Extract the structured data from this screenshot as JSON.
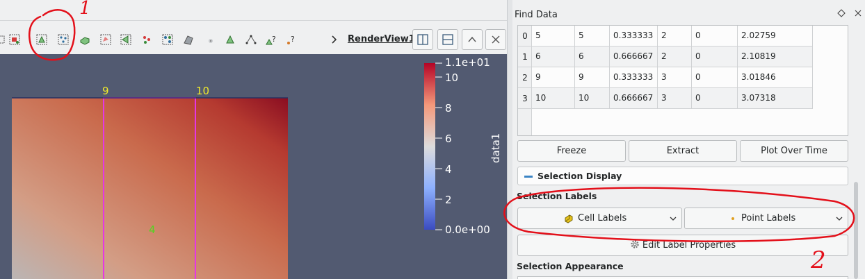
{
  "render_view": {
    "name": "RenderView1",
    "point_labels": [
      "9",
      "10"
    ],
    "cell_label": "4",
    "colorbar": {
      "title": "data1",
      "max_label": "1.1e+01",
      "min_label": "0.0e+00",
      "ticks": [
        "10",
        "8",
        "6",
        "4",
        "2"
      ]
    }
  },
  "panel": {
    "title": "Find Data",
    "table": {
      "rows": [
        {
          "index": "0",
          "cells": [
            "5",
            "5",
            "0.333333",
            "2",
            "0",
            "2.02759"
          ]
        },
        {
          "index": "1",
          "cells": [
            "6",
            "6",
            "0.666667",
            "2",
            "0",
            "2.10819"
          ]
        },
        {
          "index": "2",
          "cells": [
            "9",
            "9",
            "0.333333",
            "3",
            "0",
            "3.01846"
          ]
        },
        {
          "index": "3",
          "cells": [
            "10",
            "10",
            "0.666667",
            "3",
            "0",
            "3.07318"
          ]
        }
      ]
    },
    "buttons": {
      "freeze": "Freeze",
      "extract": "Extract",
      "plot_over_time": "Plot Over Time"
    },
    "selection_display": "Selection Display",
    "selection_labels": {
      "heading": "Selection Labels",
      "cell_labels": "Cell Labels",
      "point_labels": "Point Labels",
      "edit": "Edit Label Properties"
    },
    "selection_appearance": "Selection Appearance"
  },
  "annotations": {
    "mark_1": "1",
    "mark_2": "2",
    "ink_color": "#e3101a"
  },
  "colors": {
    "render_bg": "#525a71",
    "selection_outline": "#e536e5",
    "point_label": "#f0ea2a",
    "cell_label": "#52d420",
    "accent": "#3b84c4"
  }
}
